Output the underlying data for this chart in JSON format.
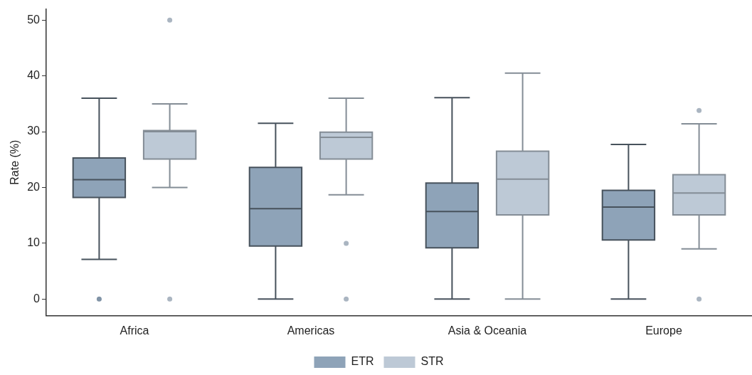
{
  "chart_data": {
    "type": "box",
    "ylabel": "Rate (%)",
    "categories": [
      "Africa",
      "Americas",
      "Asia & Oceania",
      "Europe"
    ],
    "series": [
      {
        "name": "ETR",
        "color": "#8ea3b8",
        "boxes": [
          {
            "low": 7.1,
            "q1": 18.2,
            "median": 21.4,
            "q3": 25.3,
            "high": 36.0,
            "outliers": [
              0
            ]
          },
          {
            "low": 0,
            "q1": 9.5,
            "median": 16.2,
            "q3": 23.6,
            "high": 31.5
          },
          {
            "low": 0,
            "q1": 9.2,
            "median": 15.7,
            "q3": 20.8,
            "high": 36.1
          },
          {
            "low": 0,
            "q1": 10.6,
            "median": 16.5,
            "q3": 19.5,
            "high": 27.7
          }
        ]
      },
      {
        "name": "STR",
        "color": "#bdc9d6",
        "boxes": [
          {
            "low": 20.0,
            "q1": 25.1,
            "median": 30.0,
            "q3": 30.2,
            "high": 35.0,
            "outliers": [
              0,
              50
            ]
          },
          {
            "low": 18.7,
            "q1": 25.1,
            "median": 29.0,
            "q3": 29.9,
            "high": 36.0,
            "outliers": [
              10,
              0
            ]
          },
          {
            "low": 0,
            "q1": 15.1,
            "median": 21.5,
            "q3": 26.5,
            "high": 40.5
          },
          {
            "low": 9.0,
            "q1": 15.1,
            "median": 19.0,
            "q3": 22.3,
            "high": 31.4,
            "outliers": [
              33.8,
              0
            ]
          }
        ]
      }
    ],
    "ylim": [
      -3,
      52
    ],
    "yticks": [
      0,
      10,
      20,
      30,
      40,
      50
    ],
    "grid": false,
    "legend": "bottom"
  }
}
